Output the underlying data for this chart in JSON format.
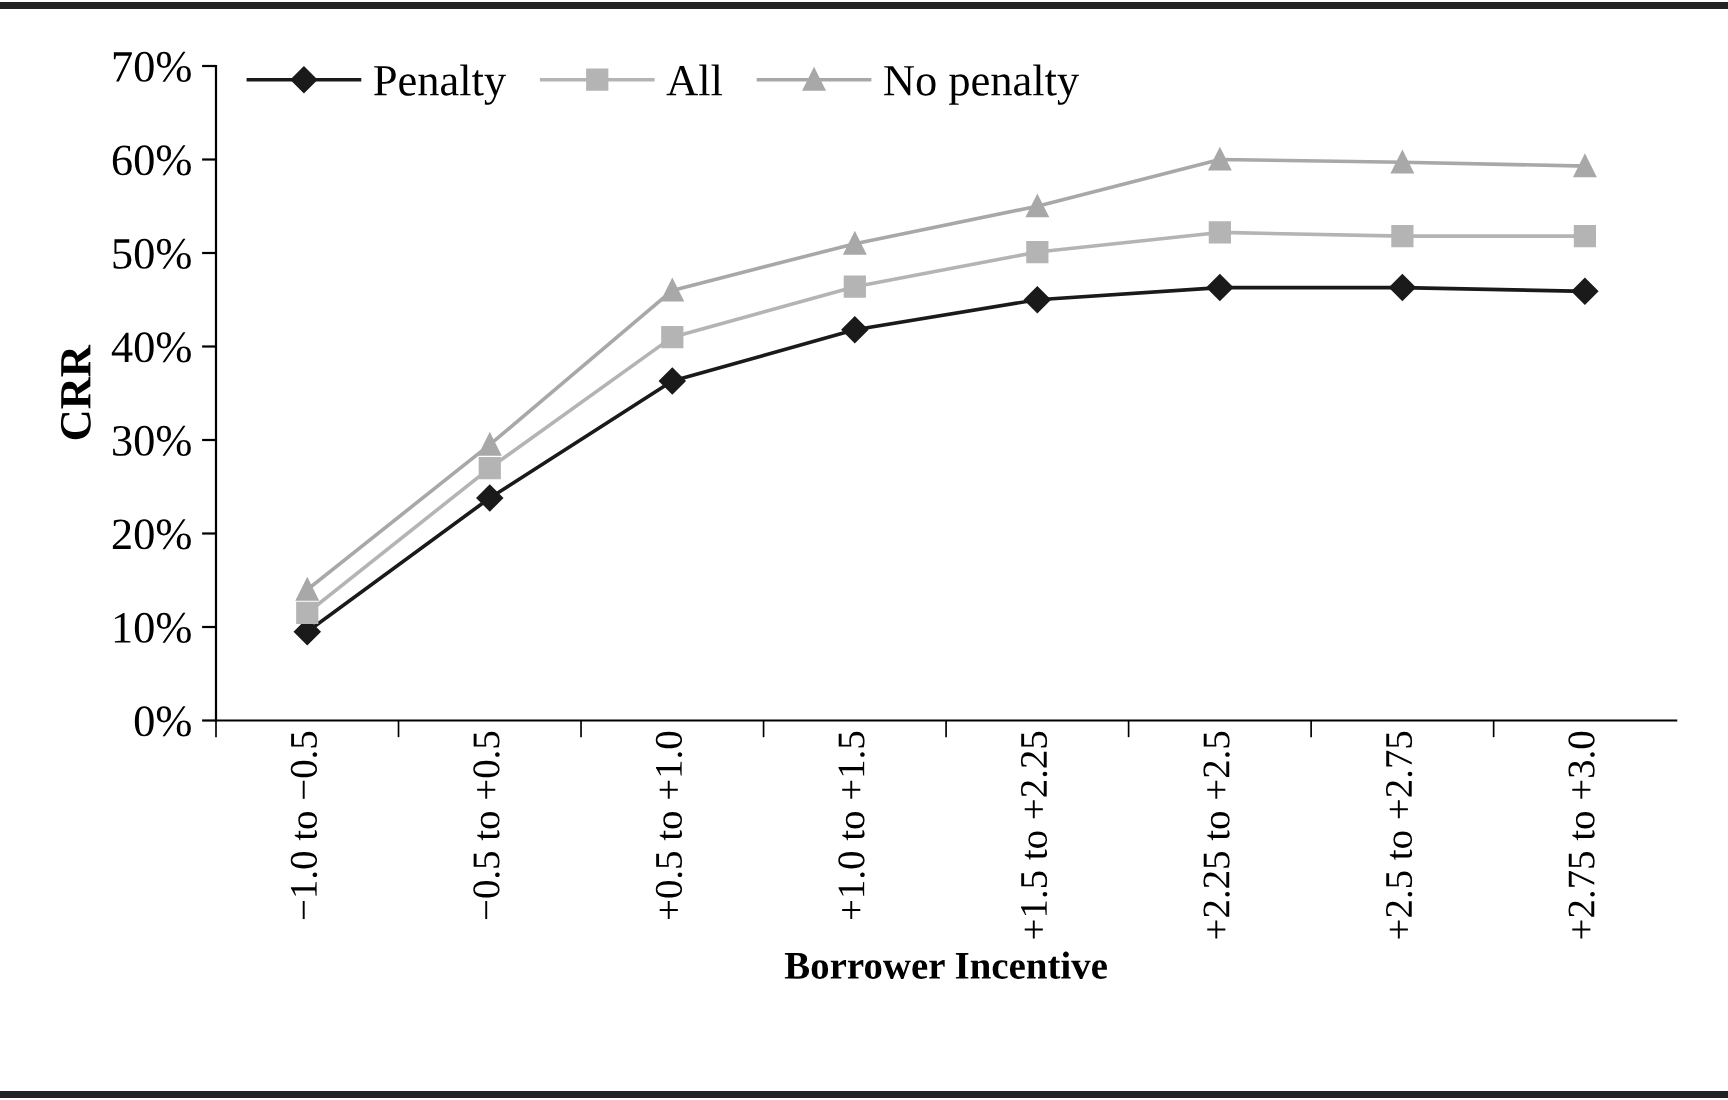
{
  "chart_data": {
    "type": "line",
    "xlabel": "Borrower Incentive",
    "ylabel": "CRR",
    "categories": [
      "−1.0 to −0.5",
      "−0.5 to +0.5",
      "+0.5 to +1.0",
      "+1.0 to +1.5",
      "+1.5 to +2.25",
      "+2.25 to +2.5",
      "+2.5 to +2.75",
      "+2.75 to +3.0"
    ],
    "series": [
      {
        "name": "Penalty",
        "color": "#1a1a1a",
        "marker": "diamond",
        "values": [
          9.5,
          23.8,
          36.3,
          41.8,
          45.0,
          46.3,
          46.3,
          45.9
        ]
      },
      {
        "name": "All",
        "color": "#b4b4b4",
        "marker": "square",
        "values": [
          11.5,
          27.0,
          41.0,
          46.4,
          50.1,
          52.2,
          51.8,
          51.8
        ]
      },
      {
        "name": "No penalty",
        "color": "#a8a8a8",
        "marker": "triangle",
        "values": [
          14.0,
          29.5,
          46.0,
          51.0,
          55.0,
          60.0,
          59.7,
          59.3
        ]
      }
    ],
    "ylim": [
      0,
      70
    ],
    "yticks": [
      {
        "value": 0,
        "label": "0%"
      },
      {
        "value": 10,
        "label": "10%"
      },
      {
        "value": 20,
        "label": "20%"
      },
      {
        "value": 30,
        "label": "30%"
      },
      {
        "value": 40,
        "label": "40%"
      },
      {
        "value": 50,
        "label": "50%"
      },
      {
        "value": 60,
        "label": "60%"
      },
      {
        "value": 70,
        "label": "70%"
      }
    ],
    "grid": false,
    "legend": "top left",
    "line_style": "solid"
  }
}
